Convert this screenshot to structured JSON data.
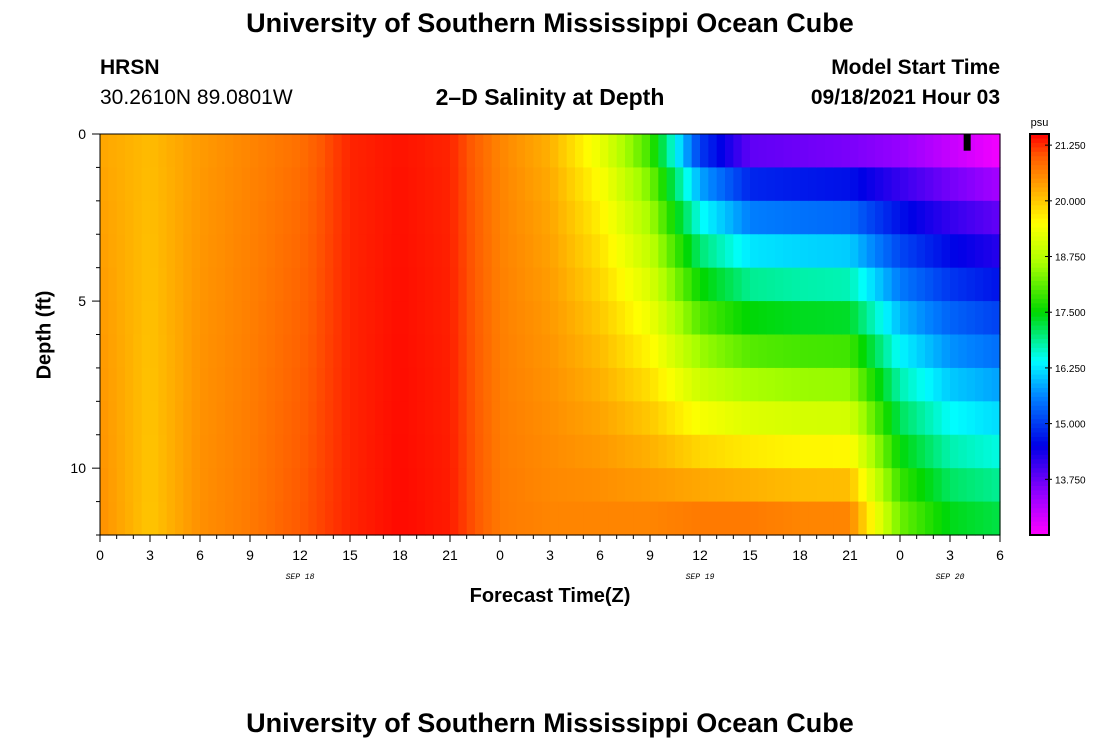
{
  "header": {
    "top_title": "University of Southern Mississippi Ocean Cube",
    "bottom_title": "University of Southern Mississippi Ocean Cube",
    "station_code": "HRSN",
    "station_coords": "30.2610N  89.0801W",
    "plot_title": "2–D Salinity at Depth",
    "model_label": "Model Start Time",
    "model_time": "09/18/2021 Hour 03"
  },
  "chart_data": {
    "type": "heatmap",
    "title": "2–D Salinity at Depth",
    "xlabel": "Forecast Time(Z)",
    "ylabel": "Depth (ft)",
    "ylim": [
      0,
      12
    ],
    "y_ticks": [
      0,
      5,
      10
    ],
    "x_hour_range": [
      0,
      54
    ],
    "x_ticks": [
      {
        "h": 0,
        "label": "0"
      },
      {
        "h": 3,
        "label": "3"
      },
      {
        "h": 6,
        "label": "6"
      },
      {
        "h": 9,
        "label": "9"
      },
      {
        "h": 12,
        "label": "12"
      },
      {
        "h": 15,
        "label": "15"
      },
      {
        "h": 18,
        "label": "18"
      },
      {
        "h": 21,
        "label": "21"
      },
      {
        "h": 24,
        "label": "0"
      },
      {
        "h": 27,
        "label": "3"
      },
      {
        "h": 30,
        "label": "6"
      },
      {
        "h": 33,
        "label": "9"
      },
      {
        "h": 36,
        "label": "12"
      },
      {
        "h": 39,
        "label": "15"
      },
      {
        "h": 42,
        "label": "18"
      },
      {
        "h": 45,
        "label": "21"
      },
      {
        "h": 48,
        "label": "0"
      },
      {
        "h": 51,
        "label": "3"
      },
      {
        "h": 54,
        "label": "6"
      }
    ],
    "date_labels": [
      {
        "h": 12,
        "label": "SEP 18"
      },
      {
        "h": 36,
        "label": "SEP 19"
      },
      {
        "h": 51,
        "label": "SEP 20"
      }
    ],
    "colorbar": {
      "unit": "psu",
      "min": 12.5,
      "max": 21.5,
      "tick_values": [
        21.25,
        20.0,
        18.75,
        17.5,
        16.25,
        15.0,
        13.75
      ],
      "tick_labels": [
        "21.250",
        "20.000",
        "18.750",
        "17.500",
        "16.250",
        "15.000",
        "13.750"
      ]
    },
    "depth_levels": [
      0,
      1,
      2,
      3,
      4,
      5,
      6,
      7,
      8,
      9,
      10,
      11
    ],
    "surface_profile_hours": [
      0,
      3,
      6,
      9,
      12,
      15,
      18,
      21,
      24,
      27,
      30,
      33,
      36,
      39,
      42,
      45,
      48,
      51,
      54
    ],
    "surface_salinity": [
      20.3,
      20.1,
      20.4,
      20.6,
      20.8,
      21.3,
      21.4,
      21.3,
      20.6,
      20.2,
      19.3,
      17.9,
      15.0,
      13.8,
      13.7,
      13.6,
      13.4,
      13.0,
      12.6
    ],
    "bottom_salinity": [
      20.5,
      20.0,
      20.5,
      20.7,
      21.0,
      21.3,
      21.45,
      21.35,
      20.7,
      20.6,
      20.6,
      20.6,
      20.7,
      20.7,
      20.6,
      20.6,
      18.2,
      17.4,
      17.2
    ],
    "marker": {
      "hour": 52.0,
      "depth_top": 0.0,
      "depth_bottom": 0.5
    }
  },
  "axis_labels": {
    "xlabel": "Forecast Time(Z)",
    "ylabel": "Depth (ft)"
  }
}
